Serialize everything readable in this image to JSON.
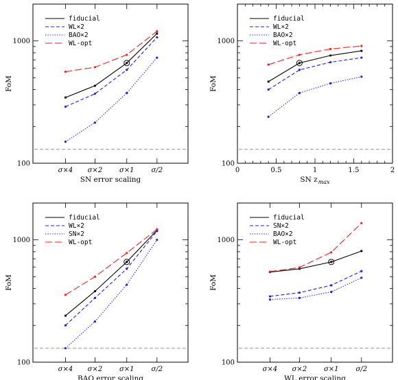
{
  "colors": {
    "fiducial": "#000000",
    "wl2": "#1a1aff",
    "bao2": "#1a1aff",
    "sn2": "#1a1aff",
    "wlopt": "#ff1a1a",
    "reference": "#888888"
  },
  "chart_data": [
    {
      "type": "line",
      "id": "p1",
      "xlabel": "SN error scaling",
      "ylabel": "FoM",
      "yscale": "log",
      "ylim": [
        100,
        2000
      ],
      "yticks": [
        100,
        1000
      ],
      "ytick_labels": [
        "100",
        "1000"
      ],
      "categories": [
        "σ×4",
        "σ×2",
        "σ×1",
        "σ/2"
      ],
      "reference_line": 130,
      "marked_point": {
        "series": 0,
        "index": 2
      },
      "legend_position": "top-left",
      "series": [
        {
          "name": "fiducial",
          "style": "solid",
          "color": "#000000",
          "values": [
            345,
            430,
            660,
            1150
          ]
        },
        {
          "name": "WL×2",
          "style": "dashed",
          "color": "#1a1aff",
          "values": [
            290,
            370,
            580,
            1070
          ]
        },
        {
          "name": "BAO×2",
          "style": "dotted",
          "color": "#1a1aff",
          "values": [
            150,
            215,
            375,
            730
          ]
        },
        {
          "name": "WL-opt",
          "style": "longdash",
          "color": "#ff1a1a",
          "values": [
            560,
            610,
            770,
            1200
          ]
        }
      ]
    },
    {
      "type": "line",
      "id": "p2",
      "xlabel": "SN z",
      "xlabel_sub": "max",
      "ylabel": "FoM",
      "yscale": "log",
      "ylim": [
        100,
        2000
      ],
      "yticks": [
        100,
        1000
      ],
      "ytick_labels": [
        "100",
        "1000"
      ],
      "xlim": [
        0,
        2
      ],
      "xticks": [
        0,
        0.5,
        1,
        1.5,
        2
      ],
      "xtick_labels": [
        "0",
        "0.5",
        "1",
        "1.5",
        "2"
      ],
      "reference_line": 130,
      "marked_point": {
        "series": 0,
        "index": 1
      },
      "legend_position": "top-left",
      "x": [
        0.4,
        0.8,
        1.2,
        1.6
      ],
      "series": [
        {
          "name": "fiducial",
          "style": "solid",
          "color": "#000000",
          "values": [
            465,
            660,
            760,
            830
          ]
        },
        {
          "name": "WL×2",
          "style": "dashed",
          "color": "#1a1aff",
          "values": [
            400,
            580,
            670,
            730
          ]
        },
        {
          "name": "BAO×2",
          "style": "dotted",
          "color": "#1a1aff",
          "values": [
            240,
            375,
            450,
            510
          ]
        },
        {
          "name": "WL-opt",
          "style": "longdash",
          "color": "#ff1a1a",
          "values": [
            640,
            770,
            860,
            910
          ]
        }
      ]
    },
    {
      "type": "line",
      "id": "p3",
      "xlabel": "BAO error scaling",
      "ylabel": "FoM",
      "yscale": "log",
      "ylim": [
        100,
        2000
      ],
      "yticks": [
        100,
        1000
      ],
      "ytick_labels": [
        "100",
        "1000"
      ],
      "categories": [
        "σ×4",
        "σ×2",
        "σ×1",
        "σ/2"
      ],
      "reference_line": 130,
      "marked_point": {
        "series": 0,
        "index": 2
      },
      "legend_position": "top-left",
      "series": [
        {
          "name": "fiducial",
          "style": "solid",
          "color": "#000000",
          "values": [
            240,
            380,
            660,
            1200
          ]
        },
        {
          "name": "WL×2",
          "style": "dashed",
          "color": "#1a1aff",
          "values": [
            200,
            335,
            580,
            1180
          ]
        },
        {
          "name": "SN×2",
          "style": "dotted",
          "color": "#1a1aff",
          "values": [
            130,
            215,
            430,
            1000
          ]
        },
        {
          "name": "WL-opt",
          "style": "longdash",
          "color": "#ff1a1a",
          "values": [
            355,
            500,
            780,
            1220
          ]
        }
      ]
    },
    {
      "type": "line",
      "id": "p4",
      "xlabel": "WL error scaling",
      "ylabel": "FoM",
      "yscale": "log",
      "ylim": [
        100,
        2000
      ],
      "yticks": [
        100,
        1000
      ],
      "ytick_labels": [
        "100",
        "1000"
      ],
      "categories": [
        "σ×4",
        "σ×2",
        "σ×1",
        "σ/2"
      ],
      "reference_line": 130,
      "marked_point": {
        "series": 0,
        "index": 2
      },
      "legend_position": "top-left",
      "series": [
        {
          "name": "fiducial",
          "style": "solid",
          "color": "#000000",
          "values": [
            545,
            580,
            660,
            810
          ]
        },
        {
          "name": "SN×2",
          "style": "dashed",
          "color": "#1a1aff",
          "values": [
            345,
            370,
            425,
            555
          ]
        },
        {
          "name": "BAO×2",
          "style": "dotted",
          "color": "#1a1aff",
          "values": [
            325,
            335,
            375,
            490
          ]
        },
        {
          "name": "WL-opt",
          "style": "longdash",
          "color": "#ff1a1a",
          "values": [
            550,
            595,
            790,
            1370
          ]
        }
      ]
    }
  ]
}
